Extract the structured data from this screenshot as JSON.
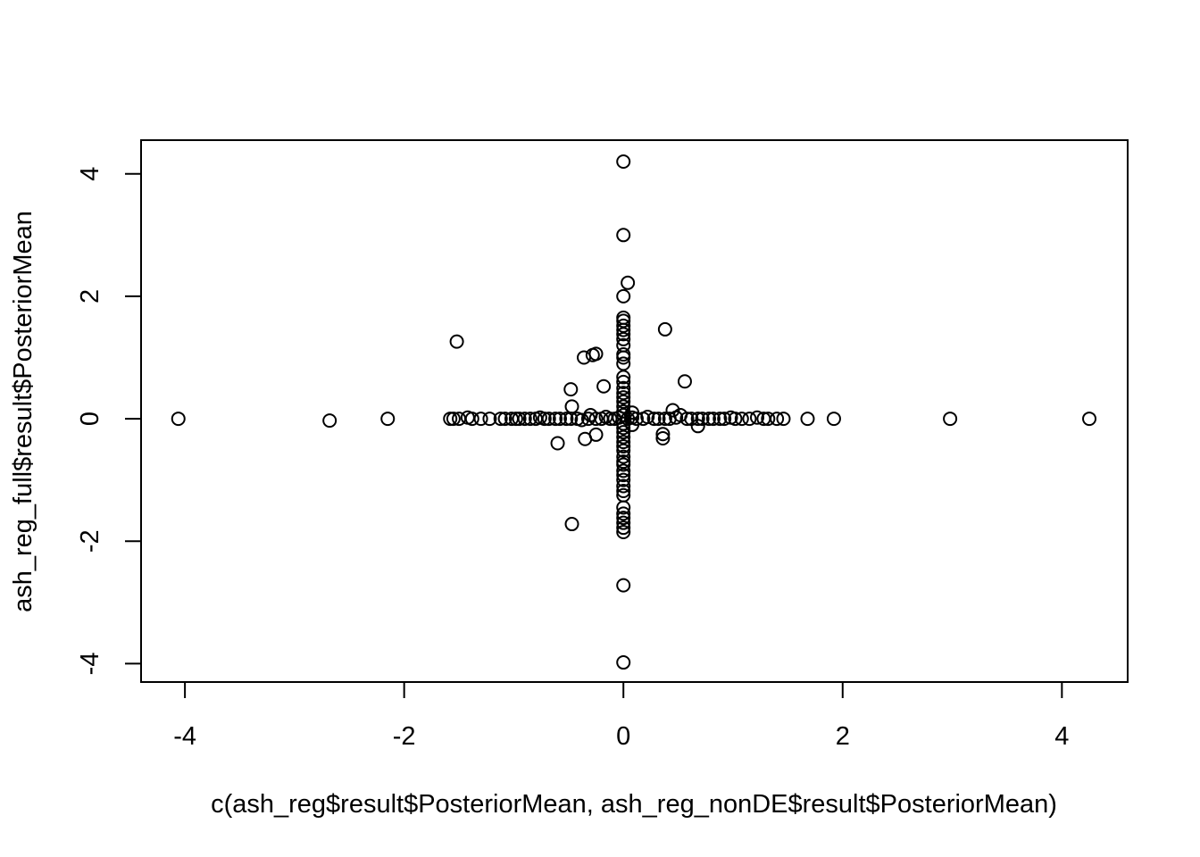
{
  "chart_data": {
    "type": "scatter",
    "title": "",
    "xlabel": "c(ash_reg$result$PosteriorMean, ash_reg_nonDE$result$PosteriorMean)",
    "ylabel": "ash_reg_full$result$PosteriorMean",
    "xlim": [
      -4.4,
      4.6
    ],
    "ylim": [
      -4.3,
      4.55
    ],
    "xticks": [
      -4,
      -2,
      0,
      2,
      4
    ],
    "yticks": [
      -4,
      -2,
      0,
      2,
      4
    ],
    "grid": false,
    "legend": "none",
    "point_style": "open-circle",
    "point_color": "#000000",
    "points": [
      [
        0,
        4.2
      ],
      [
        0,
        3.0
      ],
      [
        0.04,
        2.22
      ],
      [
        0,
        2.0
      ],
      [
        0,
        1.65
      ],
      [
        0,
        1.6
      ],
      [
        0,
        1.52
      ],
      [
        0,
        1.45
      ],
      [
        0,
        1.38
      ],
      [
        0,
        1.3
      ],
      [
        0,
        1.2
      ],
      [
        0,
        1.05
      ],
      [
        0,
        1.0
      ],
      [
        0,
        0.9
      ],
      [
        0,
        0.68
      ],
      [
        0,
        0.6
      ],
      [
        0,
        0.5
      ],
      [
        0,
        0.42
      ],
      [
        0,
        0.35
      ],
      [
        0,
        0.28
      ],
      [
        0,
        0.2
      ],
      [
        0,
        0.12
      ],
      [
        0,
        0.06
      ],
      [
        0,
        -0.08
      ],
      [
        0,
        -0.15
      ],
      [
        0,
        -0.22
      ],
      [
        0,
        -0.3
      ],
      [
        0,
        -0.38
      ],
      [
        0,
        -0.45
      ],
      [
        0,
        -0.52
      ],
      [
        0,
        -0.62
      ],
      [
        0,
        -0.7
      ],
      [
        0,
        -0.75
      ],
      [
        0,
        -0.85
      ],
      [
        0,
        -0.92
      ],
      [
        0,
        -1.0
      ],
      [
        0,
        -1.1
      ],
      [
        0,
        -1.18
      ],
      [
        0,
        -1.25
      ],
      [
        0,
        -1.45
      ],
      [
        0,
        -1.55
      ],
      [
        0,
        -1.62
      ],
      [
        0,
        -1.7
      ],
      [
        0,
        -1.78
      ],
      [
        0,
        -1.85
      ],
      [
        0,
        -2.72
      ],
      [
        0,
        -3.98
      ],
      [
        -1.52,
        1.26
      ],
      [
        0.38,
        1.46
      ],
      [
        -0.25,
        1.06
      ],
      [
        -0.28,
        1.04
      ],
      [
        -0.36,
        1.0
      ],
      [
        0.56,
        0.61
      ],
      [
        -0.18,
        0.53
      ],
      [
        -0.48,
        0.48
      ],
      [
        -0.47,
        0.2
      ],
      [
        -0.6,
        -0.4
      ],
      [
        -0.35,
        -0.33
      ],
      [
        -0.25,
        -0.26
      ],
      [
        0.36,
        -0.25
      ],
      [
        0.36,
        -0.32
      ],
      [
        -0.47,
        -1.72
      ],
      [
        0.45,
        0.14
      ],
      [
        0.68,
        -0.12
      ],
      [
        0.08,
        0.1
      ],
      [
        0.08,
        -0.1
      ],
      [
        -4.06,
        0
      ],
      [
        -2.68,
        -0.03
      ],
      [
        -2.15,
        0
      ],
      [
        -1.58,
        0
      ],
      [
        -1.55,
        0
      ],
      [
        -1.5,
        0
      ],
      [
        -1.42,
        0.02
      ],
      [
        -1.38,
        0
      ],
      [
        -1.3,
        0
      ],
      [
        -1.22,
        0
      ],
      [
        -1.12,
        0
      ],
      [
        -1.08,
        0
      ],
      [
        -1.02,
        0
      ],
      [
        -0.98,
        0
      ],
      [
        -0.95,
        0
      ],
      [
        -0.9,
        0
      ],
      [
        -0.85,
        0
      ],
      [
        -0.8,
        0
      ],
      [
        -0.76,
        0.02
      ],
      [
        -0.72,
        0
      ],
      [
        -0.68,
        0
      ],
      [
        -0.62,
        0
      ],
      [
        -0.58,
        0
      ],
      [
        -0.52,
        0
      ],
      [
        -0.48,
        0
      ],
      [
        -0.42,
        0
      ],
      [
        -0.38,
        -0.02
      ],
      [
        -0.32,
        0
      ],
      [
        -0.3,
        0.06
      ],
      [
        -0.25,
        0
      ],
      [
        -0.2,
        0
      ],
      [
        -0.16,
        0.03
      ],
      [
        -0.12,
        0
      ],
      [
        -0.08,
        0
      ],
      [
        -0.04,
        0.02
      ],
      [
        0.04,
        0
      ],
      [
        0.08,
        0.02
      ],
      [
        0.12,
        0
      ],
      [
        0.18,
        0
      ],
      [
        0.22,
        0.03
      ],
      [
        0.28,
        0
      ],
      [
        0.32,
        0
      ],
      [
        0.38,
        0
      ],
      [
        0.42,
        0
      ],
      [
        0.48,
        0.02
      ],
      [
        0.52,
        0.06
      ],
      [
        0.58,
        0
      ],
      [
        0.62,
        0
      ],
      [
        0.68,
        0
      ],
      [
        0.72,
        0
      ],
      [
        0.78,
        0
      ],
      [
        0.82,
        0
      ],
      [
        0.88,
        0
      ],
      [
        0.92,
        0
      ],
      [
        0.98,
        0.02
      ],
      [
        1.02,
        0
      ],
      [
        1.08,
        0
      ],
      [
        1.15,
        0
      ],
      [
        1.22,
        0.02
      ],
      [
        1.28,
        0
      ],
      [
        1.32,
        0
      ],
      [
        1.4,
        0
      ],
      [
        1.46,
        0
      ],
      [
        1.68,
        0
      ],
      [
        1.92,
        0
      ],
      [
        2.98,
        0
      ],
      [
        4.25,
        0
      ]
    ]
  }
}
